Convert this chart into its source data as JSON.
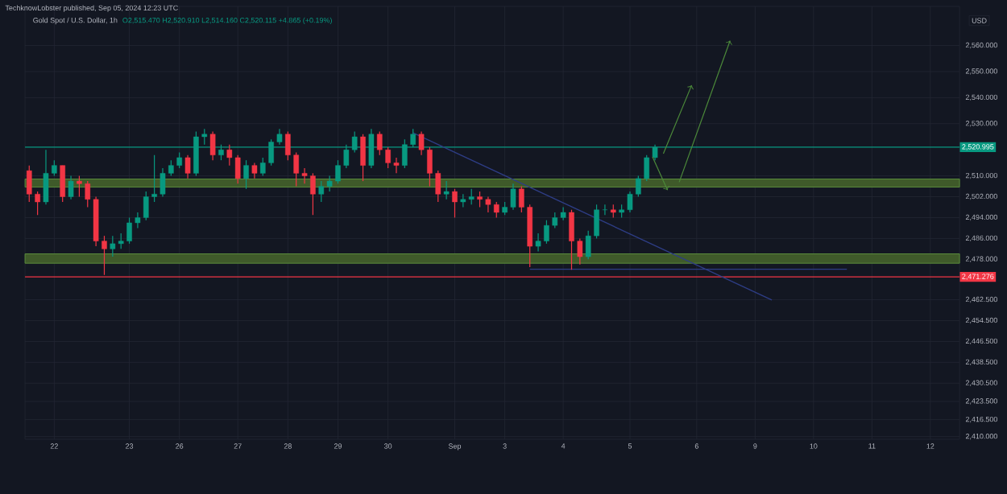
{
  "chart_data": {
    "type": "candlestick",
    "title": "Gold Spot / U.S. Dollar, 1h",
    "subtitle": "O2,515.470 H2,520.910 L2,514.160 C2,520.115 +4.865 (+0.19%)",
    "ylabel": "USD",
    "annotations": [
      "TechknowLobster published, Sep 05, 2024 12:23 UTC"
    ],
    "categories": [
      null,
      null,
      null,
      "22",
      null,
      null,
      null,
      null,
      null,
      null,
      null,
      null,
      "23",
      null,
      null,
      null,
      null,
      null,
      "26",
      null,
      null,
      null,
      null,
      null,
      null,
      "27",
      null,
      null,
      null,
      null,
      null,
      "28",
      null,
      null,
      null,
      null,
      null,
      "29",
      null,
      null,
      null,
      null,
      null,
      "30",
      null,
      null,
      null,
      null,
      null,
      null,
      null,
      "Sep",
      null,
      null,
      null,
      null,
      null,
      "3",
      null,
      null,
      null,
      null,
      null,
      null,
      "4",
      null,
      null,
      null,
      null,
      null,
      null,
      null,
      "5",
      null,
      null,
      null,
      null,
      null,
      null,
      null,
      "6",
      null,
      null,
      null,
      null,
      null,
      null,
      "9",
      null,
      null,
      null,
      null,
      null,
      null,
      "10",
      null,
      null,
      null,
      null,
      null,
      null,
      "11",
      null,
      null,
      null,
      null,
      null,
      null,
      "12",
      null,
      null,
      null
    ],
    "ohlc": [
      [
        2512,
        2514,
        2500,
        2503
      ],
      [
        2503,
        2504,
        2495,
        2500
      ],
      [
        2500,
        2520,
        2499,
        2511
      ],
      [
        2511,
        2516,
        2510,
        2514
      ],
      [
        2514,
        2514,
        2500,
        2502
      ],
      [
        2502,
        2510,
        2501,
        2508
      ],
      [
        2508,
        2510,
        2502,
        2507
      ],
      [
        2507,
        2508,
        2498,
        2501
      ],
      [
        2501,
        2502,
        2483,
        2485
      ],
      [
        2485,
        2487,
        2472,
        2482
      ],
      [
        2482,
        2487,
        2479,
        2484
      ],
      [
        2484,
        2488,
        2482,
        2485
      ],
      [
        2485,
        2494,
        2484,
        2492
      ],
      [
        2492,
        2496,
        2490,
        2494
      ],
      [
        2494,
        2504,
        2493,
        2502
      ],
      [
        2502,
        2518,
        2500,
        2503
      ],
      [
        2503,
        2513,
        2502,
        2511
      ],
      [
        2511,
        2516,
        2510,
        2514
      ],
      [
        2514,
        2519,
        2513,
        2517
      ],
      [
        2517,
        2518,
        2509,
        2511
      ],
      [
        2511,
        2527,
        2510,
        2525
      ],
      [
        2525,
        2528,
        2522,
        2526
      ],
      [
        2526,
        2527,
        2516,
        2518
      ],
      [
        2518,
        2522,
        2516,
        2520
      ],
      [
        2520,
        2522,
        2514,
        2517
      ],
      [
        2517,
        2518,
        2507,
        2509
      ],
      [
        2509,
        2516,
        2505,
        2514
      ],
      [
        2514,
        2515,
        2509,
        2511
      ],
      [
        2511,
        2517,
        2510,
        2515
      ],
      [
        2515,
        2524,
        2514,
        2523
      ],
      [
        2523,
        2528,
        2522,
        2526
      ],
      [
        2526,
        2527,
        2516,
        2518
      ],
      [
        2518,
        2519,
        2506,
        2511
      ],
      [
        2511,
        2513,
        2507,
        2510
      ],
      [
        2510,
        2511,
        2495,
        2503
      ],
      [
        2503,
        2508,
        2500,
        2506
      ],
      [
        2506,
        2510,
        2504,
        2508
      ],
      [
        2508,
        2516,
        2507,
        2514
      ],
      [
        2514,
        2522,
        2513,
        2520
      ],
      [
        2520,
        2527,
        2519,
        2525
      ],
      [
        2525,
        2526,
        2508,
        2514
      ],
      [
        2514,
        2528,
        2513,
        2526
      ],
      [
        2526,
        2527,
        2518,
        2520
      ],
      [
        2520,
        2521,
        2513,
        2515
      ],
      [
        2515,
        2517,
        2511,
        2514
      ],
      [
        2514,
        2524,
        2513,
        2522
      ],
      [
        2522,
        2528,
        2521,
        2526
      ],
      [
        2526,
        2527,
        2518,
        2520
      ],
      [
        2520,
        2521,
        2506,
        2511
      ],
      [
        2511,
        2512,
        2500,
        2503
      ],
      [
        2503,
        2508,
        2501,
        2504
      ],
      [
        2504,
        2505,
        2494,
        2500
      ],
      [
        2500,
        2503,
        2498,
        2501
      ],
      [
        2501,
        2505,
        2499,
        2502
      ],
      [
        2502,
        2504,
        2498,
        2501
      ],
      [
        2501,
        2502,
        2496,
        2499
      ],
      [
        2499,
        2500,
        2494,
        2496
      ],
      [
        2496,
        2500,
        2495,
        2498
      ],
      [
        2498,
        2507,
        2497,
        2505
      ],
      [
        2505,
        2506,
        2496,
        2498
      ],
      [
        2498,
        2499,
        2475,
        2483
      ],
      [
        2483,
        2488,
        2481,
        2485
      ],
      [
        2485,
        2493,
        2484,
        2491
      ],
      [
        2491,
        2496,
        2490,
        2494
      ],
      [
        2494,
        2498,
        2493,
        2496
      ],
      [
        2496,
        2497,
        2474,
        2485
      ],
      [
        2485,
        2486,
        2476,
        2479
      ],
      [
        2479,
        2489,
        2478,
        2487
      ],
      [
        2487,
        2499,
        2486,
        2497
      ],
      [
        2497,
        2499,
        2495,
        2497
      ],
      [
        2497,
        2499,
        2494,
        2496
      ],
      [
        2496,
        2499,
        2494,
        2497
      ],
      [
        2497,
        2504,
        2496,
        2503
      ],
      [
        2503,
        2510,
        2502,
        2509
      ],
      [
        2509,
        2518,
        2508,
        2517
      ],
      [
        2517,
        2522,
        2516,
        2521
      ],
      null,
      null,
      null,
      null,
      null,
      null,
      null,
      null,
      null,
      null,
      null,
      null,
      null,
      null,
      null,
      null,
      null,
      null,
      null,
      null,
      null,
      null,
      null,
      null,
      null,
      null,
      null,
      null,
      null,
      null,
      null,
      null,
      null,
      null,
      null,
      null
    ],
    "series": [
      {
        "type": "line",
        "color": "#2e3d85",
        "values": [
          null,
          null,
          null,
          null,
          null,
          null,
          null,
          null,
          null,
          null,
          null,
          null,
          null,
          null,
          null,
          null,
          null,
          null,
          null,
          null,
          null,
          null,
          null,
          null,
          null,
          null,
          null,
          null,
          null,
          null,
          null,
          null,
          null,
          null,
          null,
          null,
          null,
          null,
          null,
          null,
          null,
          null,
          null,
          null,
          null,
          null,
          2526.5,
          null,
          null,
          null,
          null,
          null,
          null,
          null,
          null,
          null,
          null,
          null,
          null,
          null,
          null,
          null,
          null,
          null,
          null,
          null,
          null,
          null,
          null,
          null,
          null,
          null,
          null,
          null,
          null,
          null,
          null,
          null,
          null,
          null,
          null,
          null,
          null,
          null,
          null,
          null,
          null,
          null,
          null,
          2462.4,
          null,
          null,
          null,
          null,
          null,
          null,
          null,
          null,
          null,
          null,
          null,
          null,
          null,
          null,
          null,
          null,
          null,
          null,
          null,
          null,
          null,
          null
        ]
      },
      {
        "type": "line",
        "color": "#2e3d85",
        "values": [
          null,
          null,
          null,
          null,
          null,
          null,
          null,
          null,
          null,
          null,
          null,
          null,
          null,
          null,
          null,
          null,
          null,
          null,
          null,
          null,
          null,
          null,
          null,
          null,
          null,
          null,
          null,
          null,
          null,
          null,
          null,
          null,
          null,
          null,
          null,
          null,
          null,
          null,
          null,
          null,
          null,
          null,
          null,
          null,
          null,
          null,
          null,
          null,
          null,
          null,
          null,
          null,
          null,
          null,
          null,
          null,
          null,
          null,
          null,
          null,
          2474.2,
          null,
          null,
          null,
          null,
          null,
          null,
          null,
          null,
          null,
          null,
          null,
          null,
          null,
          null,
          null,
          null,
          null,
          null,
          null,
          null,
          null,
          null,
          null,
          null,
          null,
          null,
          null,
          null,
          null,
          null,
          null,
          null,
          null,
          null,
          null,
          null,
          null,
          2474.2,
          null,
          null,
          null,
          null,
          null,
          null,
          null,
          null,
          null,
          null,
          null,
          null,
          null
        ]
      }
    ],
    "ylim": [
      2409,
      2575
    ],
    "yticks": [
      {
        "value": 2560,
        "label": "2,560.000"
      },
      {
        "value": 2550,
        "label": "2,550.000"
      },
      {
        "value": 2540,
        "label": "2,540.000"
      },
      {
        "value": 2530,
        "label": "2,530.000"
      },
      {
        "value": 2510,
        "label": "2,510.000"
      },
      {
        "value": 2502,
        "label": "2,502.000"
      },
      {
        "value": 2494,
        "label": "2,494.000"
      },
      {
        "value": 2486,
        "label": "2,486.000"
      },
      {
        "value": 2478,
        "label": "2,478.000"
      },
      {
        "value": 2462.5,
        "label": "2,462.500"
      },
      {
        "value": 2454.5,
        "label": "2,454.500"
      },
      {
        "value": 2446.5,
        "label": "2,446.500"
      },
      {
        "value": 2438.5,
        "label": "2,438.500"
      },
      {
        "value": 2430.5,
        "label": "2,430.500"
      },
      {
        "value": 2423.5,
        "label": "2,423.500"
      },
      {
        "value": 2416.5,
        "label": "2,416.500"
      },
      {
        "value": 2410,
        "label": "2,410.000"
      }
    ],
    "ref_lines": [
      {
        "axis": "y",
        "value": 2520.995,
        "label": "2,520.995",
        "color": "#089981"
      },
      {
        "axis": "y",
        "value": 2471.276,
        "label": "2,471.276",
        "color": "#f23645"
      }
    ],
    "bands": [
      {
        "axis": "y",
        "from": 2505.7,
        "to": 2508.8,
        "color": "#3f5a2a"
      },
      {
        "axis": "y",
        "from": 2476.5,
        "to": 2480.1,
        "color": "#3f5a2a"
      }
    ],
    "grid": true
  }
}
